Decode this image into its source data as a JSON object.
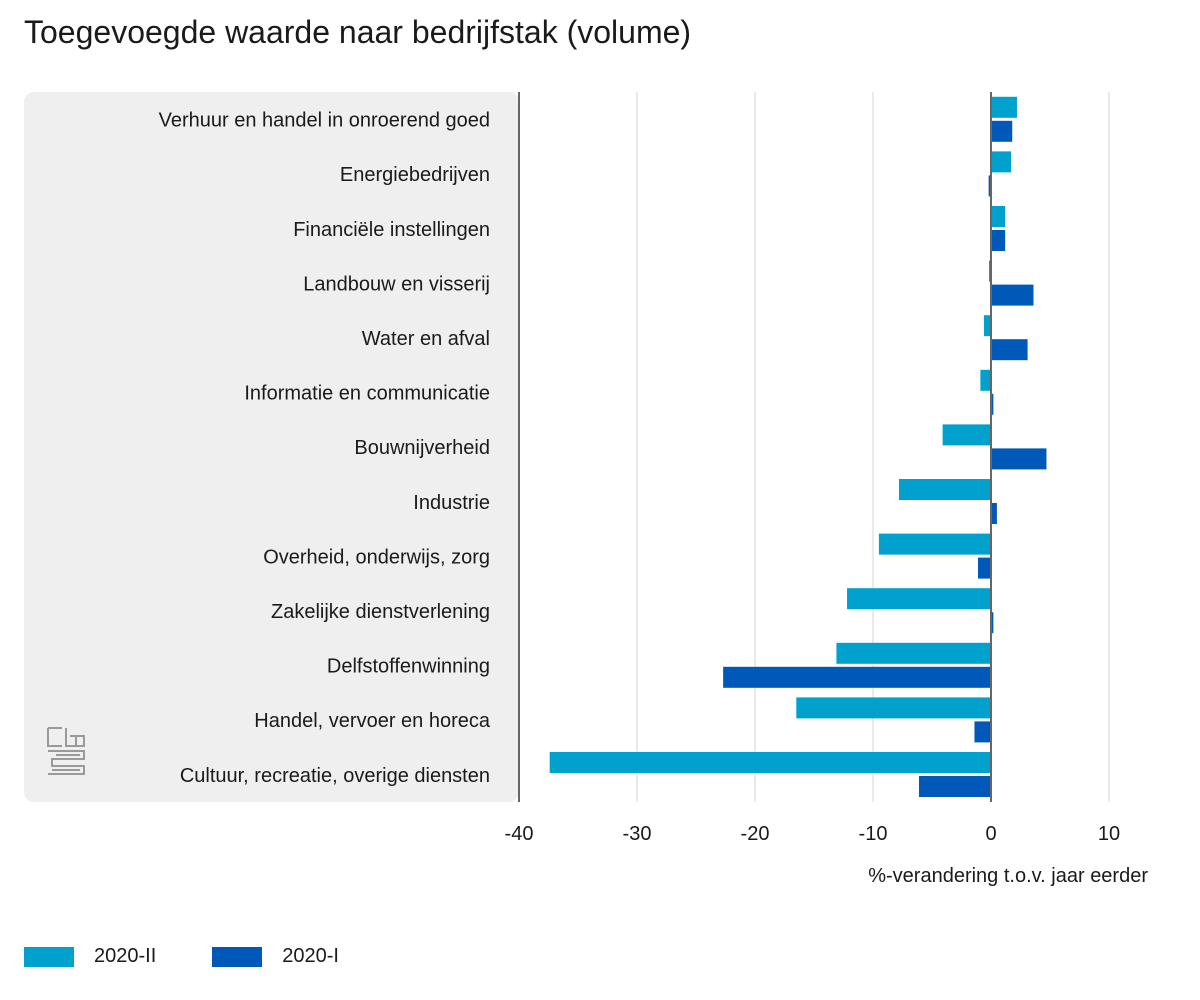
{
  "colors": {
    "s1": "#00a1cd",
    "s2": "#0058b8",
    "panel": "#efefef",
    "grid": "#d4d4d4",
    "axis": "#666666",
    "logo": "#9a9a9a"
  },
  "logo": {
    "icon": "cbs-logo-icon",
    "text": "cbs"
  },
  "chart_data": {
    "type": "bar",
    "orientation": "horizontal",
    "title": "Toegevoegde waarde naar bedrijfstak (volume)",
    "xlabel": "%-verandering t.o.v. jaar eerder",
    "xlim": [
      -40,
      10
    ],
    "xticks": [
      -40,
      -30,
      -20,
      -10,
      0,
      10
    ],
    "grid": true,
    "legend_position": "bottom-left",
    "categories": [
      "Verhuur en handel in onroerend goed",
      "Energiebedrijven",
      "Financiële instellingen",
      "Landbouw en visserij",
      "Water en afval",
      "Informatie en communicatie",
      "Bouwnijverheid",
      "Industrie",
      "Overheid, onderwijs, zorg",
      "Zakelijke dienstverlening",
      "Delfstoffenwinning",
      "Handel, vervoer en horeca",
      "Cultuur, recreatie, overige diensten"
    ],
    "series": [
      {
        "name": "2020-II",
        "values": [
          2.2,
          1.7,
          1.2,
          -0.1,
          -0.6,
          -0.9,
          -4.1,
          -7.8,
          -9.5,
          -12.2,
          -13.1,
          -16.5,
          -37.4
        ]
      },
      {
        "name": "2020-I",
        "values": [
          1.8,
          -0.2,
          1.2,
          3.6,
          3.1,
          0.2,
          4.7,
          0.5,
          -1.1,
          0.2,
          -22.7,
          -1.4,
          -6.1
        ]
      }
    ]
  }
}
